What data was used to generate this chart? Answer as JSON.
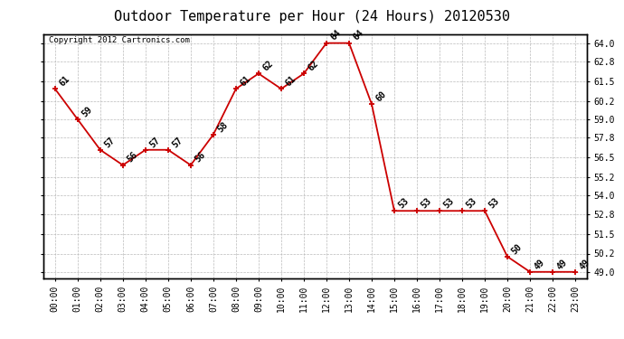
{
  "title": "Outdoor Temperature per Hour (24 Hours) 20120530",
  "copyright_text": "Copyright 2012 Cartronics.com",
  "hours": [
    "00:00",
    "01:00",
    "02:00",
    "03:00",
    "04:00",
    "05:00",
    "06:00",
    "07:00",
    "08:00",
    "09:00",
    "10:00",
    "11:00",
    "12:00",
    "13:00",
    "14:00",
    "15:00",
    "16:00",
    "17:00",
    "18:00",
    "19:00",
    "20:00",
    "21:00",
    "22:00",
    "23:00"
  ],
  "temps": [
    61,
    59,
    57,
    56,
    57,
    57,
    56,
    58,
    61,
    62,
    61,
    62,
    64,
    64,
    60,
    53,
    53,
    53,
    53,
    53,
    50,
    49,
    49,
    49
  ],
  "line_color": "#cc0000",
  "marker": "+",
  "bg_color": "#ffffff",
  "grid_color": "#bbbbbb",
  "title_fontsize": 11,
  "tick_fontsize": 7,
  "annotation_fontsize": 7,
  "copyright_fontsize": 6.5,
  "ymin": 48.6,
  "ymax": 64.6,
  "yticks": [
    49.0,
    50.2,
    51.5,
    52.8,
    54.0,
    55.2,
    56.5,
    57.8,
    59.0,
    60.2,
    61.5,
    62.8,
    64.0
  ]
}
